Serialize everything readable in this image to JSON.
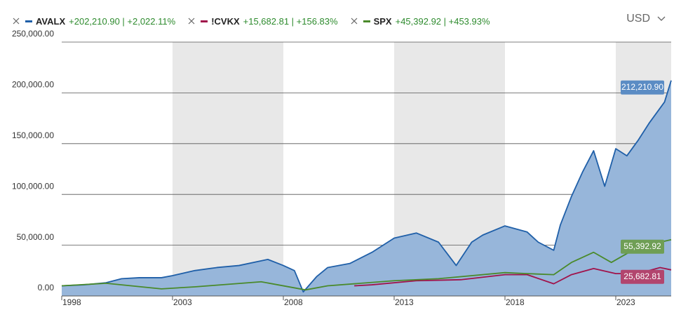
{
  "chart_data": {
    "type": "line",
    "currency": "USD",
    "xlim": [
      1998,
      2025.5
    ],
    "xticks": [
      1998,
      2003,
      2008,
      2013,
      2018,
      2023
    ],
    "ylim": [
      0,
      250000
    ],
    "yticks": [
      {
        "value": 0,
        "label": "0.00"
      },
      {
        "value": 50000,
        "label": "50,000.00"
      },
      {
        "value": 100000,
        "label": "100,000.00"
      },
      {
        "value": 150000,
        "label": "150,000.00"
      },
      {
        "value": 200000,
        "label": "200,000.00"
      },
      {
        "value": 250000,
        "label": "250,000.00"
      }
    ],
    "grid": true,
    "alternate_bands": true,
    "series": [
      {
        "name": "AVALX",
        "change": "+202,210.90 | +2,022.11%",
        "color": "#1f5fa8",
        "area": true,
        "area_color": "#97b6da",
        "label_color": "#5b8cc4",
        "last_label": "212,210.90",
        "x": [
          1998,
          1999,
          2000,
          2000.7,
          2001.5,
          2002.5,
          2003,
          2004,
          2005,
          2006,
          2007.3,
          2008,
          2008.5,
          2008.9,
          2009.5,
          2010,
          2011,
          2012,
          2013,
          2014,
          2015,
          2015.8,
          2016.5,
          2017,
          2018,
          2019,
          2019.5,
          2020.2,
          2020.5,
          2021,
          2021.5,
          2022,
          2022.5,
          2023,
          2023.5,
          2024,
          2024.5,
          2025.2,
          2025.5
        ],
        "values": [
          10000,
          11000,
          13000,
          17000,
          18000,
          18000,
          20000,
          25000,
          28000,
          30000,
          36000,
          30000,
          25000,
          4000,
          19000,
          28000,
          32000,
          43000,
          57000,
          62000,
          53000,
          30000,
          53000,
          60000,
          69000,
          63000,
          53000,
          45000,
          70000,
          98000,
          122000,
          143000,
          108000,
          145000,
          138000,
          153000,
          170000,
          191000,
          212210.9
        ]
      },
      {
        "name": "!CVKX",
        "change": "+15,682.81 | +156.83%",
        "color": "#a0134b",
        "area": false,
        "label_color": "#b2456e",
        "last_label": "25,682.81",
        "x": [
          2011.2,
          2012,
          2014,
          2016,
          2018,
          2019,
          2020.2,
          2021,
          2022,
          2023,
          2024,
          2025,
          2025.5
        ],
        "values": [
          10000,
          11000,
          15000,
          16000,
          21000,
          21000,
          12000,
          21000,
          27000,
          22000,
          22000,
          28000,
          25682.81
        ]
      },
      {
        "name": "SPX",
        "change": "+45,392.92 | +453.93%",
        "color": "#4a8a2b",
        "area": false,
        "label_color": "#6f9e55",
        "last_label": "55,392.92",
        "x": [
          1998,
          2000,
          2002.5,
          2004,
          2007,
          2009,
          2010,
          2013,
          2015,
          2018,
          2019,
          2020.2,
          2021,
          2022,
          2022.8,
          2024,
          2025.5
        ],
        "values": [
          10000,
          12500,
          7000,
          9000,
          14000,
          6000,
          10000,
          15000,
          17000,
          23000,
          22000,
          21000,
          33000,
          43000,
          33000,
          48000,
          55392.92
        ]
      }
    ]
  }
}
